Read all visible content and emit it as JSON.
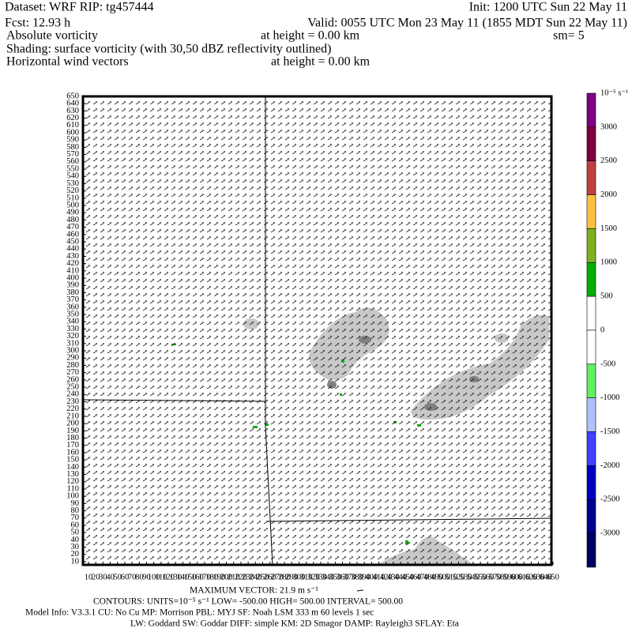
{
  "header": {
    "dataset": "Dataset: WRF   RIP: tg457444",
    "init": "Init: 1200 UTC Sun 22 May 11",
    "fcst": "Fcst:   12.93 h",
    "valid": "Valid: 0055 UTC Mon 23 May 11 (1855 MDT Sun 22 May 11)",
    "field1": "Absolute vorticity",
    "field1_height": "at height =  0.00 km",
    "smoothing": "sm= 5",
    "shading": "Shading: surface vorticity (with 30,50 dBZ reflectivity outlined)",
    "field2": "Horizontal wind vectors",
    "field2_height": "at height =  0.00 km"
  },
  "axes": {
    "y_labels": [
      10,
      20,
      30,
      40,
      50,
      60,
      70,
      80,
      90,
      100,
      110,
      120,
      130,
      140,
      150,
      160,
      170,
      180,
      190,
      200,
      210,
      220,
      230,
      240,
      250,
      260,
      270,
      280,
      290,
      300,
      310,
      320,
      330,
      340,
      350,
      360,
      370,
      380,
      390,
      400,
      410,
      420,
      430,
      440,
      450,
      460,
      470,
      480,
      490,
      500,
      510,
      520,
      530,
      540,
      550,
      560,
      570,
      580,
      590,
      600,
      610,
      620,
      630,
      640,
      650
    ],
    "x_labels": [
      10,
      20,
      30,
      40,
      50,
      60,
      70,
      80,
      90,
      100,
      110,
      120,
      130,
      140,
      150,
      160,
      170,
      180,
      190,
      200,
      210,
      220,
      230,
      240,
      250,
      260,
      270,
      280,
      290,
      300,
      310,
      320,
      330,
      340,
      350,
      360,
      370,
      380,
      390,
      400,
      410,
      420,
      430,
      440,
      450,
      460,
      470,
      480,
      490,
      500,
      510,
      520,
      530,
      540,
      550,
      560,
      570,
      580,
      590,
      600,
      610,
      620,
      630,
      640,
      650
    ]
  },
  "colorbar": {
    "unit": "10⁻⁵ s⁻¹",
    "labels": [
      3000,
      2500,
      2000,
      1500,
      1000,
      500,
      0,
      -500,
      -1000,
      -1500,
      -2000,
      -2500,
      -3000
    ],
    "colors": [
      "#800080",
      "#800040",
      "#c04040",
      "#ffc040",
      "#80b020",
      "#00b000",
      "#ffffff",
      "#ffffff",
      "#60f060",
      "#b0c0ff",
      "#4040ff",
      "#0000c0",
      "#000090",
      "#000060"
    ]
  },
  "footer": {
    "max_vector": "MAXIMUM VECTOR:  21.9 m s⁻¹",
    "contours": "CONTOURS:  UNITS=10⁻⁵ s⁻¹  LOW= -500.00      HIGH=  500.00      INTERVAL=    500.00",
    "model_info": "Model Info: V3.3.1     CU: No Cu     MP: Morrison     PBL: MYJ     SF: Noah LSM     333 m     60 levels     1 sec",
    "physics": "LW: Goddard SW: Goddar DIFF: simple KM: 2D Smagor DAMP: Rayleigh3    SFLAY: Eta"
  }
}
